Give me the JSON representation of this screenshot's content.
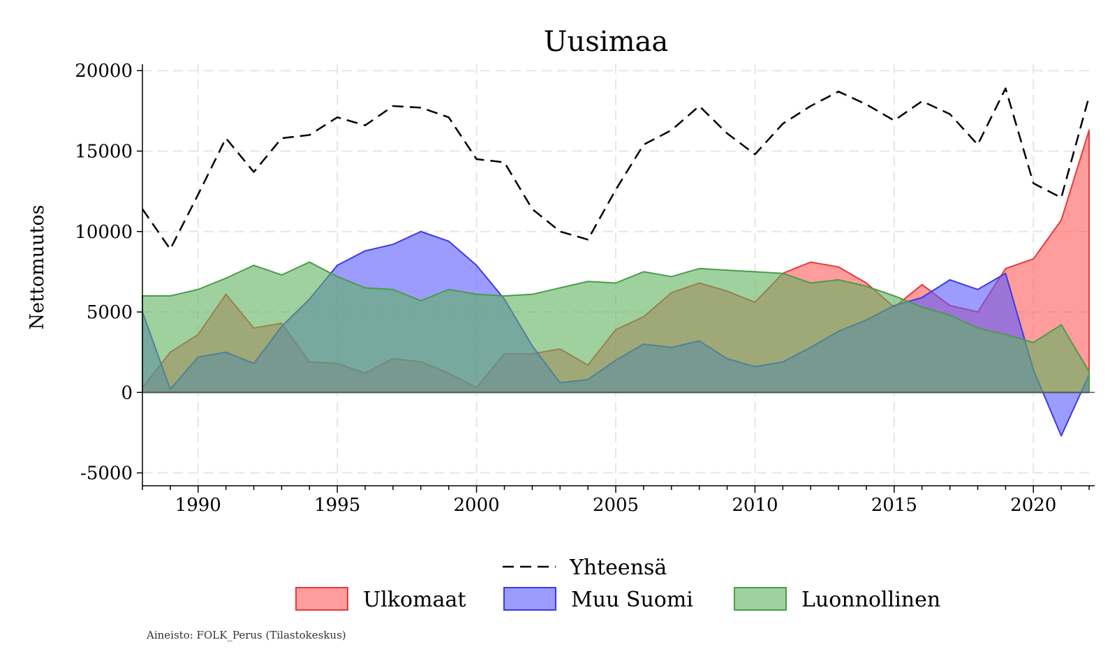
{
  "chart_data": {
    "type": "area",
    "title": "Uusimaa",
    "xlabel": "",
    "ylabel": "Nettomuutos",
    "xlim": [
      1988,
      2022.2
    ],
    "ylim": [
      -5800,
      20400
    ],
    "x_ticks": [
      1990,
      1995,
      2000,
      2005,
      2010,
      2015,
      2020
    ],
    "y_ticks": [
      -5000,
      0,
      5000,
      10000,
      15000,
      20000
    ],
    "grid": true,
    "legend_position": "bottom",
    "x": [
      1988,
      1989,
      1990,
      1991,
      1992,
      1993,
      1994,
      1995,
      1996,
      1997,
      1998,
      1999,
      2000,
      2001,
      2002,
      2003,
      2004,
      2005,
      2006,
      2007,
      2008,
      2009,
      2010,
      2011,
      2012,
      2013,
      2014,
      2015,
      2016,
      2017,
      2018,
      2019,
      2020,
      2021,
      2022
    ],
    "series": [
      {
        "name": "Yhteensä",
        "kind": "line",
        "style": "dashed",
        "color": "#000000",
        "values": [
          11400,
          8900,
          12300,
          15800,
          13700,
          15800,
          16000,
          17100,
          16600,
          17800,
          17700,
          17100,
          14500,
          14300,
          11400,
          10000,
          9500,
          12600,
          15400,
          16300,
          17800,
          16100,
          14800,
          16700,
          17800,
          18700,
          17900,
          16900,
          18100,
          17300,
          15400,
          18900,
          13000,
          12100,
          18400
        ]
      },
      {
        "name": "Ulkomaat",
        "kind": "area",
        "fill": "#ff5a5a",
        "stroke": "#e83a3a",
        "values": [
          300,
          2500,
          3600,
          6100,
          4000,
          4300,
          1900,
          1800,
          1200,
          2100,
          1900,
          1200,
          300,
          2400,
          2400,
          2700,
          1700,
          3900,
          4700,
          6200,
          6800,
          6300,
          5600,
          7400,
          8100,
          7800,
          6800,
          5300,
          6700,
          5400,
          5000,
          7700,
          8300,
          10700,
          16300
        ]
      },
      {
        "name": "Muu Suomi",
        "kind": "area",
        "fill": "#5a5aff",
        "stroke": "#3a3ae8",
        "values": [
          5000,
          200,
          2200,
          2500,
          1800,
          4100,
          5800,
          7900,
          8800,
          9200,
          10000,
          9400,
          7900,
          5800,
          2900,
          600,
          800,
          2000,
          3000,
          2800,
          3200,
          2100,
          1600,
          1900,
          2800,
          3800,
          4500,
          5400,
          5900,
          7000,
          6400,
          7400,
          1400,
          -2700,
          1100
        ]
      },
      {
        "name": "Luonnollinen",
        "kind": "area",
        "fill": "#5fb35f",
        "stroke": "#4a9c4a",
        "values": [
          6000,
          6000,
          6400,
          7100,
          7900,
          7300,
          8100,
          7200,
          6500,
          6400,
          5700,
          6400,
          6100,
          6000,
          6100,
          6500,
          6900,
          6800,
          7500,
          7200,
          7700,
          7600,
          7500,
          7400,
          6800,
          7000,
          6600,
          6000,
          5300,
          4800,
          4000,
          3600,
          3100,
          4200,
          1300
        ]
      }
    ],
    "source_note": "Aineisto: FOLK_Perus (Tilastokeskus)"
  }
}
